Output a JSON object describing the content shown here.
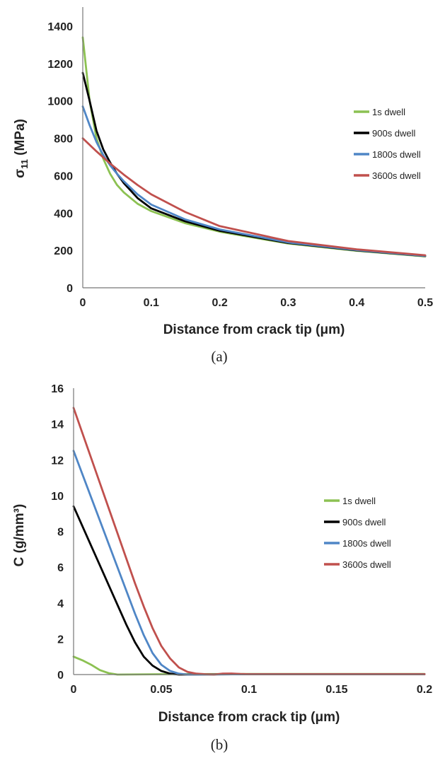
{
  "chart_data": [
    {
      "type": "line",
      "caption": "(a)",
      "title": "",
      "xlabel": "Distance from crack tip (μm)",
      "ylabel_main": "σ",
      "ylabel_sub": "11",
      "ylabel_rest": " (MPa)",
      "xlim": [
        0,
        0.5
      ],
      "ylim": [
        0,
        1400
      ],
      "xticks": [
        0,
        0.1,
        0.2,
        0.3,
        0.4,
        0.5
      ],
      "xtick_labels": [
        "0",
        "0.1",
        "0.2",
        "0.3",
        "0.4",
        "0.5"
      ],
      "yticks": [
        0,
        200,
        400,
        600,
        800,
        1000,
        1200,
        1400
      ],
      "ytick_labels": [
        "0",
        "200",
        "400",
        "600",
        "800",
        "1000",
        "1200",
        "1400"
      ],
      "grid": false,
      "legend_position": "right",
      "series": [
        {
          "name": "1s dwell",
          "color": "#8cc152",
          "points": [
            [
              0,
              1340
            ],
            [
              0.01,
              1000
            ],
            [
              0.02,
              800
            ],
            [
              0.03,
              690
            ],
            [
              0.04,
              610
            ],
            [
              0.05,
              550
            ],
            [
              0.06,
              510
            ],
            [
              0.08,
              450
            ],
            [
              0.1,
              410
            ],
            [
              0.15,
              345
            ],
            [
              0.2,
              300
            ],
            [
              0.3,
              237
            ],
            [
              0.4,
              198
            ],
            [
              0.5,
              168
            ]
          ]
        },
        {
          "name": "900s dwell",
          "color": "#000000",
          "points": [
            [
              0,
              1150
            ],
            [
              0.01,
              1000
            ],
            [
              0.02,
              840
            ],
            [
              0.03,
              740
            ],
            [
              0.04,
              670
            ],
            [
              0.05,
              610
            ],
            [
              0.06,
              560
            ],
            [
              0.08,
              480
            ],
            [
              0.1,
              425
            ],
            [
              0.15,
              355
            ],
            [
              0.2,
              305
            ],
            [
              0.3,
              240
            ],
            [
              0.4,
              200
            ],
            [
              0.5,
              170
            ]
          ]
        },
        {
          "name": "1800s dwell",
          "color": "#4f86c6",
          "points": [
            [
              0,
              970
            ],
            [
              0.01,
              870
            ],
            [
              0.02,
              780
            ],
            [
              0.03,
              710
            ],
            [
              0.04,
              655
            ],
            [
              0.05,
              610
            ],
            [
              0.06,
              570
            ],
            [
              0.08,
              500
            ],
            [
              0.1,
              445
            ],
            [
              0.15,
              365
            ],
            [
              0.2,
              312
            ],
            [
              0.3,
              243
            ],
            [
              0.4,
              202
            ],
            [
              0.5,
              171
            ]
          ]
        },
        {
          "name": "3600s dwell",
          "color": "#c0504d",
          "points": [
            [
              0,
              800
            ],
            [
              0.02,
              730
            ],
            [
              0.04,
              665
            ],
            [
              0.06,
              605
            ],
            [
              0.08,
              550
            ],
            [
              0.1,
              500
            ],
            [
              0.15,
              405
            ],
            [
              0.2,
              330
            ],
            [
              0.3,
              250
            ],
            [
              0.4,
              206
            ],
            [
              0.5,
              174
            ]
          ]
        }
      ]
    },
    {
      "type": "line",
      "caption": "(b)",
      "title": "",
      "xlabel": "Distance from crack tip (μm)",
      "ylabel": "C (g/mm³)",
      "xlim": [
        0,
        0.2
      ],
      "ylim": [
        0,
        16
      ],
      "xticks": [
        0,
        0.05,
        0.1,
        0.15,
        0.2
      ],
      "xtick_labels": [
        "0",
        "0.05",
        "0.1",
        "0.15",
        "0.2"
      ],
      "yticks": [
        0,
        2,
        4,
        6,
        8,
        10,
        12,
        14,
        16
      ],
      "ytick_labels": [
        "0",
        "2",
        "4",
        "6",
        "8",
        "10",
        "12",
        "14",
        "16"
      ],
      "grid": false,
      "legend_position": "right",
      "series": [
        {
          "name": "1s dwell",
          "color": "#8cc152",
          "points": [
            [
              0,
              1.0
            ],
            [
              0.005,
              0.8
            ],
            [
              0.01,
              0.55
            ],
            [
              0.015,
              0.25
            ],
            [
              0.02,
              0.08
            ],
            [
              0.025,
              0.0
            ],
            [
              0.05,
              0.02
            ],
            [
              0.1,
              0.03
            ],
            [
              0.2,
              0.03
            ]
          ]
        },
        {
          "name": "900s dwell",
          "color": "#000000",
          "points": [
            [
              0,
              9.4
            ],
            [
              0.005,
              8.3
            ],
            [
              0.01,
              7.2
            ],
            [
              0.015,
              6.1
            ],
            [
              0.02,
              5.0
            ],
            [
              0.025,
              3.9
            ],
            [
              0.03,
              2.8
            ],
            [
              0.035,
              1.8
            ],
            [
              0.04,
              1.0
            ],
            [
              0.045,
              0.5
            ],
            [
              0.05,
              0.2
            ],
            [
              0.055,
              0.05
            ],
            [
              0.06,
              0.0
            ],
            [
              0.1,
              0.02
            ],
            [
              0.2,
              0.02
            ]
          ]
        },
        {
          "name": "1800s dwell",
          "color": "#4f86c6",
          "points": [
            [
              0,
              12.5
            ],
            [
              0.005,
              11.2
            ],
            [
              0.01,
              9.9
            ],
            [
              0.015,
              8.6
            ],
            [
              0.02,
              7.3
            ],
            [
              0.025,
              6.0
            ],
            [
              0.03,
              4.7
            ],
            [
              0.035,
              3.4
            ],
            [
              0.04,
              2.2
            ],
            [
              0.045,
              1.2
            ],
            [
              0.05,
              0.55
            ],
            [
              0.055,
              0.2
            ],
            [
              0.06,
              0.05
            ],
            [
              0.065,
              0.0
            ],
            [
              0.1,
              0.02
            ],
            [
              0.2,
              0.02
            ]
          ]
        },
        {
          "name": "3600s dwell",
          "color": "#c0504d",
          "points": [
            [
              0,
              14.9
            ],
            [
              0.005,
              13.5
            ],
            [
              0.01,
              12.1
            ],
            [
              0.015,
              10.7
            ],
            [
              0.02,
              9.3
            ],
            [
              0.025,
              7.9
            ],
            [
              0.03,
              6.5
            ],
            [
              0.035,
              5.1
            ],
            [
              0.04,
              3.8
            ],
            [
              0.045,
              2.6
            ],
            [
              0.05,
              1.6
            ],
            [
              0.055,
              0.9
            ],
            [
              0.06,
              0.4
            ],
            [
              0.065,
              0.15
            ],
            [
              0.07,
              0.05
            ],
            [
              0.075,
              0.02
            ],
            [
              0.08,
              0.0
            ],
            [
              0.085,
              0.05
            ],
            [
              0.09,
              0.06
            ],
            [
              0.095,
              0.03
            ],
            [
              0.1,
              0.02
            ],
            [
              0.2,
              0.02
            ]
          ]
        }
      ]
    }
  ]
}
